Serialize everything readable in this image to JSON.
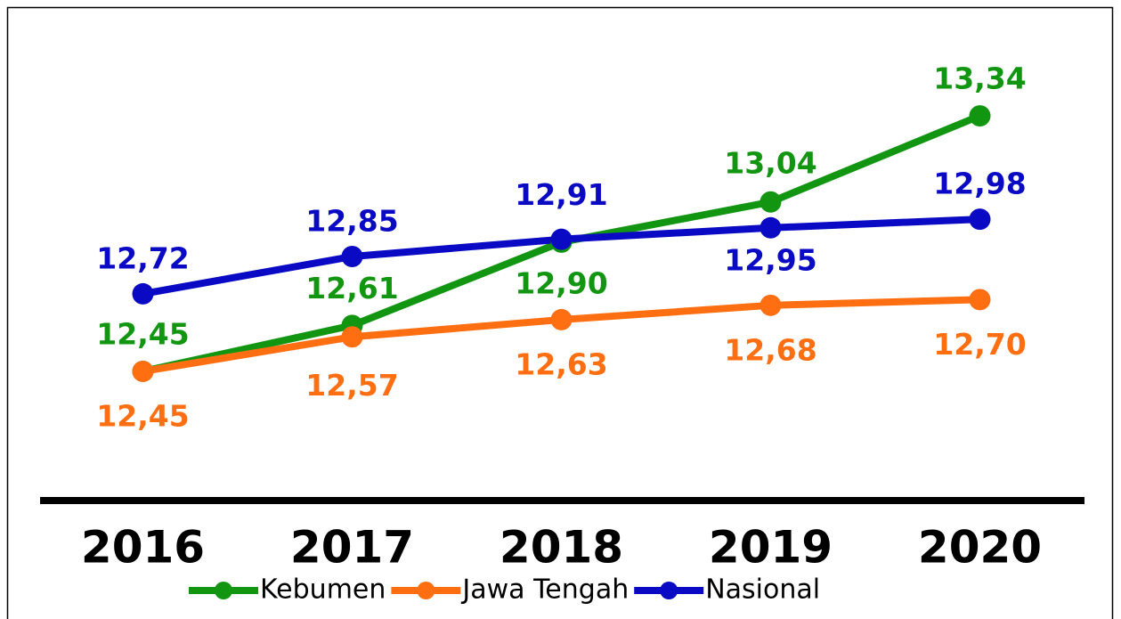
{
  "chart_data": {
    "type": "line",
    "categories": [
      "2016",
      "2017",
      "2018",
      "2019",
      "2020"
    ],
    "series": [
      {
        "name": "Kebumen",
        "color": "#129612",
        "values": [
          12.45,
          12.61,
          12.9,
          13.04,
          13.34
        ],
        "value_labels": [
          "12,45",
          "12,61",
          "12,90",
          "13,04",
          "13,34"
        ]
      },
      {
        "name": "Jawa Tengah",
        "color": "#ff6f12",
        "values": [
          12.45,
          12.57,
          12.63,
          12.68,
          12.7
        ],
        "value_labels": [
          "12,45",
          "12,57",
          "12,63",
          "12,68",
          "12,70"
        ]
      },
      {
        "name": "Nasional",
        "color": "#0a0ac4",
        "values": [
          12.72,
          12.85,
          12.91,
          12.95,
          12.98
        ],
        "value_labels": [
          "12,72",
          "12,85",
          "12,91",
          "12,95",
          "12,98"
        ]
      }
    ],
    "ylim": [
      12,
      13.5
    ],
    "legend": "bottom"
  }
}
